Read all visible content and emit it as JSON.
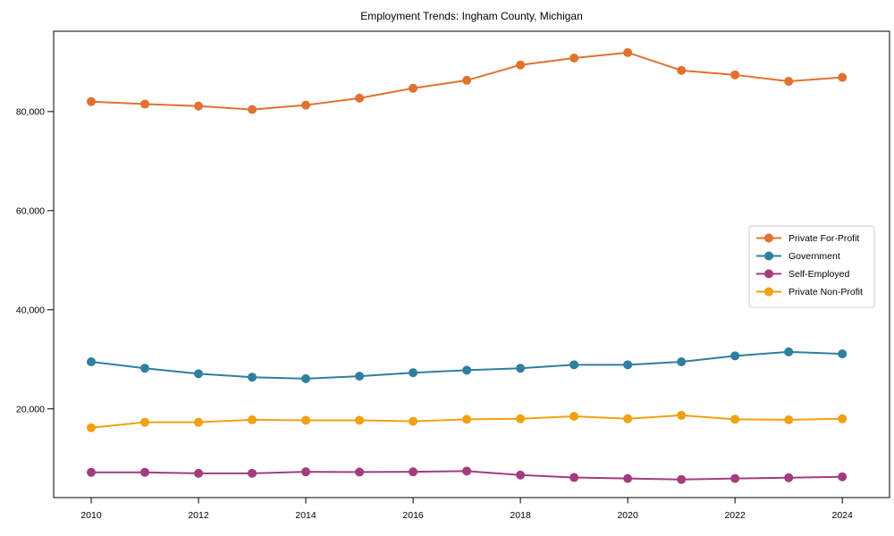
{
  "figure": {
    "background": "#ffffff",
    "axes_edge_color": "#000000",
    "legend_border_color": "#cccccc",
    "legend_background": "#ffffff"
  },
  "chart_data": {
    "type": "line",
    "title": "Employment Trends: Ingham County, Michigan",
    "xlabel": "",
    "ylabel": "",
    "grid": false,
    "marker": "o",
    "legend_position": "center right",
    "x": [
      2010,
      2011,
      2012,
      2013,
      2014,
      2015,
      2016,
      2017,
      2018,
      2019,
      2020,
      2021,
      2022,
      2023,
      2024
    ],
    "series": [
      {
        "name": "Private For-Profit",
        "slug": "private-for-profit",
        "color": "#e1712e",
        "values": [
          82000,
          81500,
          81100,
          80400,
          81300,
          82700,
          84700,
          86300,
          89400,
          90800,
          91900,
          88300,
          87400,
          86100,
          86900
        ]
      },
      {
        "name": "Government",
        "slug": "government",
        "color": "#2e7f9e",
        "values": [
          29500,
          28200,
          27100,
          26400,
          26100,
          26600,
          27300,
          27800,
          28200,
          28900,
          28900,
          29500,
          30700,
          31500,
          31100
        ]
      },
      {
        "name": "Self-Employed",
        "slug": "self-employed",
        "color": "#a23c7e",
        "values": [
          7200,
          7200,
          7000,
          7000,
          7300,
          7250,
          7300,
          7450,
          6650,
          6150,
          5950,
          5750,
          5950,
          6100,
          6300
        ]
      },
      {
        "name": "Private Non-Profit",
        "slug": "private-non-profit",
        "color": "#f0a010",
        "values": [
          16200,
          17300,
          17300,
          17800,
          17700,
          17700,
          17500,
          17900,
          18000,
          18500,
          18000,
          18700,
          17900,
          17800,
          18000
        ]
      }
    ],
    "xticks": [
      2010,
      2012,
      2014,
      2016,
      2018,
      2020,
      2022,
      2024
    ],
    "xtick_labels": [
      "2010",
      "2012",
      "2014",
      "2016",
      "2018",
      "2020",
      "2022",
      "2024"
    ],
    "yticks": [
      20000,
      40000,
      60000,
      80000
    ],
    "ytick_labels": [
      "20,000",
      "40,000",
      "60,000",
      "80,000"
    ],
    "xlim": [
      2009.3,
      2024.88
    ],
    "ylim": [
      2100,
      96200
    ]
  }
}
